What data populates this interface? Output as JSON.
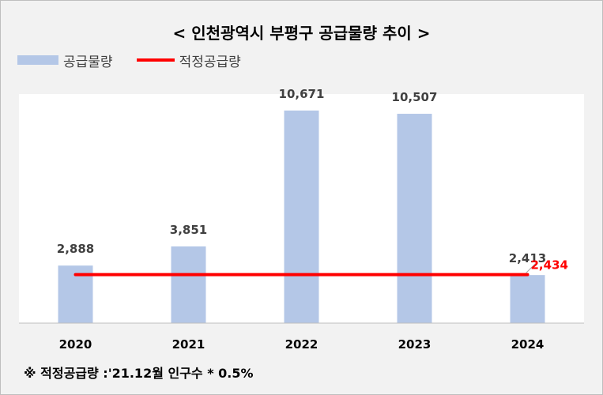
{
  "chart_data": {
    "type": "bar",
    "title": "< 인천광역시 부평구 공급물량 추이 >",
    "categories": [
      "2020",
      "2021",
      "2022",
      "2023",
      "2024"
    ],
    "series": [
      {
        "name": "공급물량",
        "kind": "bar",
        "values": [
          2888,
          3851,
          10671,
          10507,
          2413
        ],
        "labels": [
          "2,888",
          "3,851",
          "10,671",
          "10,507",
          "2,413"
        ],
        "color": "#b4c7e7"
      },
      {
        "name": "적정공급량",
        "kind": "line",
        "values": [
          2434,
          2434,
          2434,
          2434,
          2434
        ],
        "label": "2,434",
        "color": "#ff0000"
      }
    ],
    "ylim": [
      0,
      11500
    ],
    "grid": false,
    "legend": "top-left",
    "footnote": "※ 적정공급량 :'21.12월 인구수 * 0.5%"
  }
}
